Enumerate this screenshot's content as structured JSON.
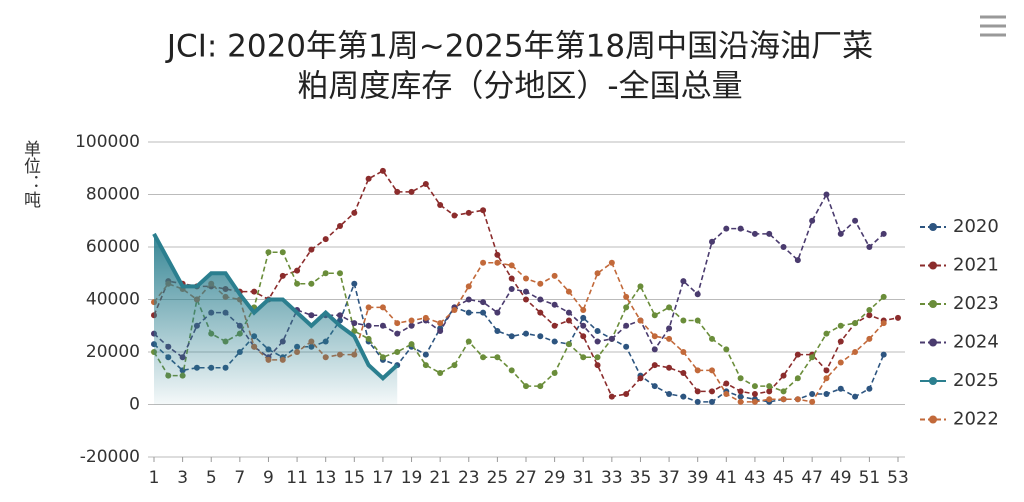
{
  "chart_data": {
    "type": "line",
    "title": [
      "JCI: 2020年第1周~2025年第18周中国沿海油厂菜",
      "粕周度库存（分地区）-全国总量"
    ],
    "ylabel": "单位：吨",
    "x": [
      1,
      2,
      3,
      4,
      5,
      6,
      7,
      8,
      9,
      10,
      11,
      12,
      13,
      14,
      15,
      16,
      17,
      18,
      19,
      20,
      21,
      22,
      23,
      24,
      25,
      26,
      27,
      28,
      29,
      30,
      31,
      32,
      33,
      34,
      35,
      36,
      37,
      38,
      39,
      40,
      41,
      42,
      43,
      44,
      45,
      46,
      47,
      48,
      49,
      50,
      51,
      52,
      53
    ],
    "xlim": [
      1,
      53
    ],
    "xticks": [
      1,
      3,
      5,
      7,
      9,
      11,
      13,
      15,
      17,
      19,
      21,
      23,
      25,
      27,
      29,
      31,
      33,
      35,
      37,
      39,
      41,
      43,
      45,
      47,
      49,
      51,
      53
    ],
    "ylim": [
      -20000,
      100000
    ],
    "yticks": [
      -20000,
      0,
      20000,
      40000,
      60000,
      80000,
      100000
    ],
    "grid": true,
    "legend": "right",
    "series": [
      {
        "name": "2020",
        "color": "#2d5580",
        "dashed": true,
        "values": [
          23000,
          18000,
          13000,
          14000,
          14000,
          14000,
          20000,
          26000,
          21000,
          18000,
          22000,
          22000,
          24000,
          32000,
          46000,
          24000,
          17000,
          15000,
          22000,
          19000,
          29000,
          37000,
          35000,
          35000,
          28000,
          26000,
          27000,
          26000,
          24000,
          23000,
          33000,
          28000,
          25000,
          22000,
          11000,
          7000,
          4000,
          3000,
          1000,
          1000,
          5000,
          3000,
          2000,
          1000,
          2000,
          2000,
          4000,
          4000,
          6000,
          3000,
          6000,
          19000,
          null
        ]
      },
      {
        "name": "2021",
        "color": "#8b2c2c",
        "dashed": true,
        "values": [
          34000,
          47000,
          46000,
          45000,
          45000,
          44000,
          43000,
          43000,
          40000,
          49000,
          51000,
          59000,
          63000,
          68000,
          73000,
          86000,
          89000,
          81000,
          81000,
          84000,
          76000,
          72000,
          73000,
          74000,
          57000,
          48000,
          40000,
          35000,
          30000,
          32000,
          26000,
          15000,
          3000,
          4000,
          10000,
          15000,
          14000,
          12000,
          5000,
          5000,
          8000,
          5000,
          4000,
          5000,
          11000,
          19000,
          19000,
          13000,
          24000,
          31000,
          34000,
          32000,
          33000
        ]
      },
      {
        "name": "2023",
        "color": "#6a8d3a",
        "dashed": true,
        "values": [
          20000,
          11000,
          11000,
          40000,
          27000,
          24000,
          27000,
          37000,
          58000,
          58000,
          46000,
          46000,
          50000,
          50000,
          28000,
          25000,
          18000,
          20000,
          23000,
          15000,
          12000,
          15000,
          24000,
          18000,
          18000,
          13000,
          7000,
          7000,
          12000,
          23000,
          18000,
          18000,
          25000,
          37000,
          45000,
          34000,
          37000,
          32000,
          32000,
          25000,
          21000,
          10000,
          7000,
          7000,
          5000,
          10000,
          18000,
          27000,
          30000,
          31000,
          36000,
          41000,
          null
        ]
      },
      {
        "name": "2024",
        "color": "#4a3b6e",
        "dashed": true,
        "values": [
          27000,
          22000,
          18000,
          30000,
          35000,
          35000,
          30000,
          22000,
          18000,
          24000,
          36000,
          34000,
          34000,
          34000,
          31000,
          30000,
          30000,
          27000,
          30000,
          32000,
          28000,
          37000,
          40000,
          39000,
          35000,
          44000,
          43000,
          40000,
          38000,
          35000,
          30000,
          24000,
          25000,
          30000,
          32000,
          21000,
          29000,
          47000,
          42000,
          62000,
          67000,
          67000,
          65000,
          65000,
          60000,
          55000,
          70000,
          80000,
          65000,
          70000,
          60000,
          65000,
          null
        ]
      },
      {
        "name": "2025",
        "color": "#2b7f8f",
        "dashed": false,
        "area": true,
        "markers": false,
        "values": [
          65000,
          55000,
          45000,
          45000,
          50000,
          50000,
          42000,
          35000,
          40000,
          40000,
          35000,
          30000,
          35000,
          30000,
          26000,
          15000,
          10000,
          15000,
          null,
          null,
          null,
          null,
          null,
          null,
          null,
          null,
          null,
          null,
          null,
          null,
          null,
          null,
          null,
          null,
          null,
          null,
          null,
          null,
          null,
          null,
          null,
          null,
          null,
          null,
          null,
          null,
          null,
          null,
          null,
          null,
          null,
          null,
          null
        ]
      },
      {
        "name": "2022",
        "color": "#c2693a",
        "dashed": true,
        "values": [
          39000,
          46000,
          44000,
          40000,
          46000,
          41000,
          40000,
          22000,
          17000,
          17000,
          20000,
          24000,
          18000,
          19000,
          19000,
          37000,
          37000,
          31000,
          32000,
          33000,
          31000,
          36000,
          45000,
          54000,
          54000,
          53000,
          48000,
          46000,
          49000,
          43000,
          36000,
          50000,
          54000,
          41000,
          32000,
          26000,
          25000,
          20000,
          13000,
          13000,
          4000,
          1000,
          1000,
          2000,
          2000,
          2000,
          1000,
          10000,
          16000,
          20000,
          25000,
          31000,
          null
        ]
      }
    ]
  }
}
